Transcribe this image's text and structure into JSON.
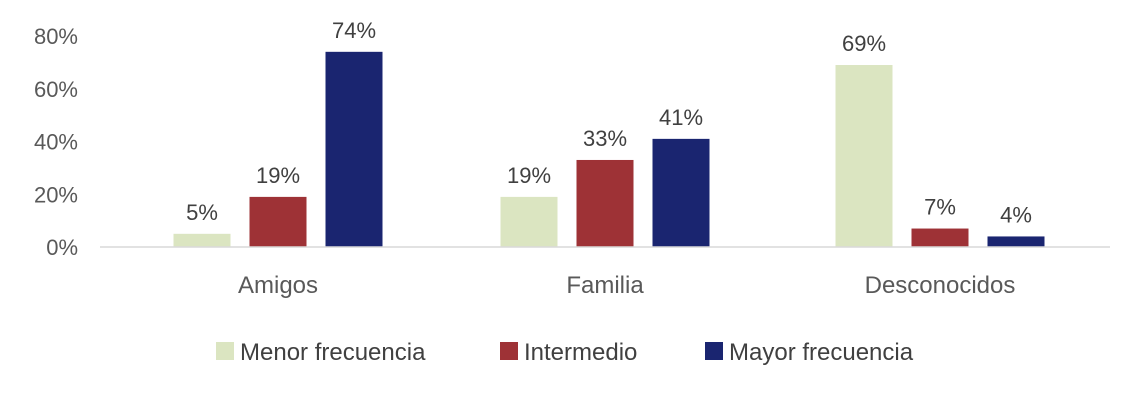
{
  "chart_data": {
    "type": "bar",
    "categories": [
      "Amigos",
      "Familia",
      "Desconocidos"
    ],
    "series": [
      {
        "name": "Menor frecuencia",
        "values": [
          5,
          19,
          69
        ],
        "color": "#dbe5c1"
      },
      {
        "name": "Intermedio",
        "values": [
          19,
          33,
          7
        ],
        "color": "#9e3236"
      },
      {
        "name": "Mayor frecuencia",
        "values": [
          74,
          41,
          4
        ],
        "color": "#1a2570"
      }
    ],
    "ylim": [
      0,
      80
    ],
    "yticks": [
      0,
      20,
      40,
      60,
      80
    ],
    "ytick_labels": [
      "0%",
      "20%",
      "40%",
      "60%",
      "80%"
    ],
    "value_suffix": "%",
    "grid": false,
    "legend_position": "bottom"
  }
}
